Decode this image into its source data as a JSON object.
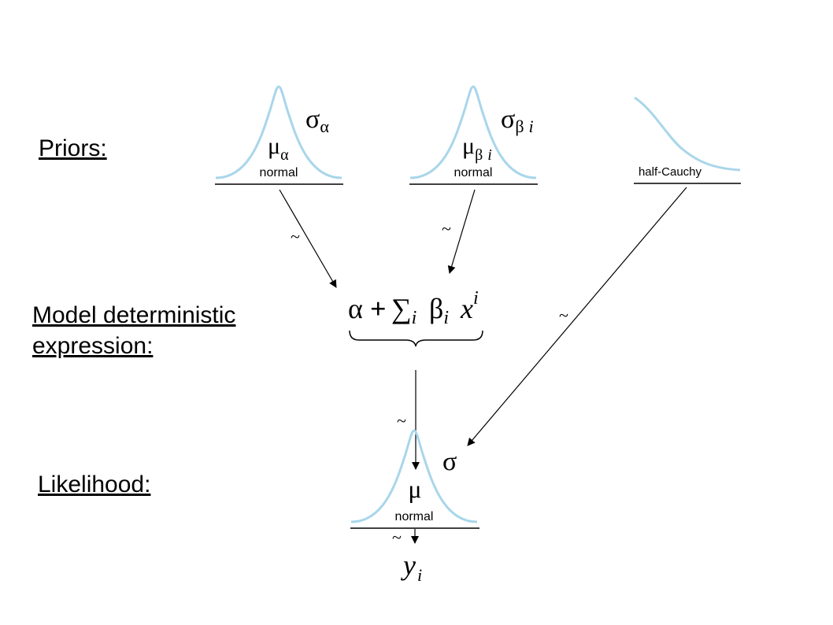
{
  "sections": {
    "priors": "Priors:",
    "model_line1": "Model deterministic",
    "model_line2": "expression:",
    "likelihood": "Likelihood:"
  },
  "priors": {
    "alpha": {
      "scale": "σ",
      "scale_sub": "α",
      "loc": "μ",
      "loc_sub": "α",
      "dist": "normal"
    },
    "beta": {
      "scale": "σ",
      "scale_sub1": "β",
      "scale_sub2": "i",
      "loc": "μ",
      "loc_sub1": "β",
      "loc_sub2": "i",
      "dist": "normal"
    },
    "sigma": {
      "dist": "half-Cauchy"
    }
  },
  "expression": {
    "alpha": "α",
    "plus": "+",
    "sum": "∑",
    "sum_sub": "i",
    "beta": "β",
    "beta_sub": "i",
    "x": "x",
    "x_sup": "i"
  },
  "likelihood": {
    "loc": "μ",
    "scale": "σ",
    "dist": "normal"
  },
  "outcome": {
    "y": "y",
    "y_sub": "i"
  },
  "tilde": "~",
  "colors": {
    "curve": "#a9d6ea",
    "ink": "#000000"
  }
}
